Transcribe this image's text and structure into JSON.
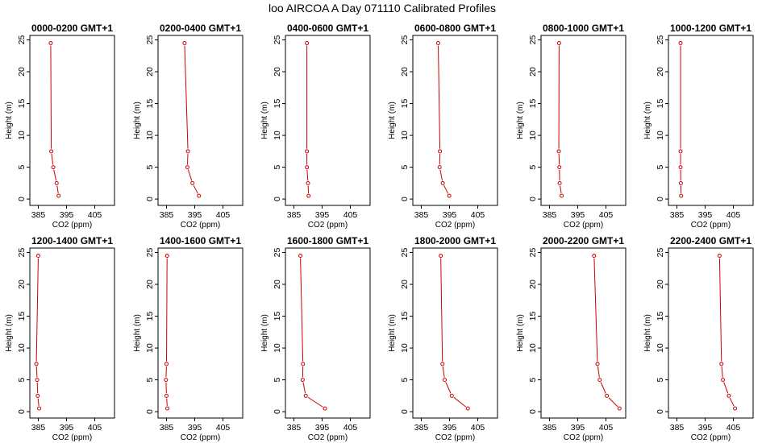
{
  "page_title": "loo AIRCOA A  Day 071110  Calibrated Profiles",
  "colors": {
    "series": "#cc0000",
    "axis": "#000000",
    "background": "#ffffff"
  },
  "chart_data": [
    {
      "type": "line",
      "title": "0000-0200 GMT+1",
      "xlabel": "CO2 (ppm)",
      "ylabel": "Height (m)",
      "xlim": [
        382,
        412
      ],
      "ylim": [
        -1,
        25.7
      ],
      "xticks": [
        385,
        395,
        405
      ],
      "yticks": [
        0,
        5,
        10,
        15,
        20,
        25
      ],
      "grid": false,
      "series": [
        {
          "x": [
            392.2,
            391.5,
            390.3,
            389.6,
            389.4
          ],
          "y": [
            0.5,
            2.5,
            5,
            7.5,
            24.5
          ]
        }
      ]
    },
    {
      "type": "line",
      "title": "0200-0400 GMT+1",
      "xlabel": "CO2 (ppm)",
      "ylabel": "Height (m)",
      "xlim": [
        382,
        412
      ],
      "ylim": [
        -1,
        25.7
      ],
      "xticks": [
        385,
        395,
        405
      ],
      "yticks": [
        0,
        5,
        10,
        15,
        20,
        25
      ],
      "grid": false,
      "series": [
        {
          "x": [
            396.5,
            394.2,
            392.4,
            392.6,
            391.4
          ],
          "y": [
            0.5,
            2.5,
            5,
            7.5,
            24.5
          ]
        }
      ]
    },
    {
      "type": "line",
      "title": "0400-0600 GMT+1",
      "xlabel": "CO2 (ppm)",
      "ylabel": "Height (m)",
      "xlim": [
        382,
        412
      ],
      "ylim": [
        -1,
        25.7
      ],
      "xticks": [
        385,
        395,
        405
      ],
      "yticks": [
        0,
        5,
        10,
        15,
        20,
        25
      ],
      "grid": false,
      "series": [
        {
          "x": [
            390.2,
            390.0,
            389.6,
            389.6,
            389.6
          ],
          "y": [
            0.5,
            2.5,
            5,
            7.5,
            24.5
          ]
        }
      ]
    },
    {
      "type": "line",
      "title": "0600-0800 GMT+1",
      "xlabel": "CO2 (ppm)",
      "ylabel": "Height (m)",
      "xlim": [
        382,
        412
      ],
      "ylim": [
        -1,
        25.7
      ],
      "xticks": [
        385,
        395,
        405
      ],
      "yticks": [
        0,
        5,
        10,
        15,
        20,
        25
      ],
      "grid": false,
      "series": [
        {
          "x": [
            394.9,
            392.6,
            391.5,
            391.6,
            391.0
          ],
          "y": [
            0.5,
            2.5,
            5,
            7.5,
            24.5
          ]
        }
      ]
    },
    {
      "type": "line",
      "title": "0800-1000 GMT+1",
      "xlabel": "CO2 (ppm)",
      "ylabel": "Height (m)",
      "xlim": [
        382,
        412
      ],
      "ylim": [
        -1,
        25.7
      ],
      "xticks": [
        385,
        395,
        405
      ],
      "yticks": [
        0,
        5,
        10,
        15,
        20,
        25
      ],
      "grid": false,
      "series": [
        {
          "x": [
            389.3,
            388.6,
            388.5,
            388.3,
            388.4
          ],
          "y": [
            0.5,
            2.5,
            5,
            7.5,
            24.5
          ]
        }
      ]
    },
    {
      "type": "line",
      "title": "1000-1200 GMT+1",
      "xlabel": "CO2 (ppm)",
      "ylabel": "Height (m)",
      "xlim": [
        382,
        412
      ],
      "ylim": [
        -1,
        25.7
      ],
      "xticks": [
        385,
        395,
        405
      ],
      "yticks": [
        0,
        5,
        10,
        15,
        20,
        25
      ],
      "grid": false,
      "series": [
        {
          "x": [
            386.5,
            386.4,
            386.3,
            386.3,
            386.3
          ],
          "y": [
            0.5,
            2.5,
            5,
            7.5,
            24.5
          ]
        }
      ]
    },
    {
      "type": "line",
      "title": "1200-1400 GMT+1",
      "xlabel": "CO2 (ppm)",
      "ylabel": "Height (m)",
      "xlim": [
        382,
        412
      ],
      "ylim": [
        -1,
        25.7
      ],
      "xticks": [
        385,
        395,
        405
      ],
      "yticks": [
        0,
        5,
        10,
        15,
        20,
        25
      ],
      "grid": false,
      "series": [
        {
          "x": [
            385.3,
            384.8,
            384.6,
            384.3,
            385.0
          ],
          "y": [
            0.5,
            2.5,
            5,
            7.5,
            24.5
          ]
        }
      ]
    },
    {
      "type": "line",
      "title": "1400-1600 GMT+1",
      "xlabel": "CO2 (ppm)",
      "ylabel": "Height (m)",
      "xlim": [
        382,
        412
      ],
      "ylim": [
        -1,
        25.7
      ],
      "xticks": [
        385,
        395,
        405
      ],
      "yticks": [
        0,
        5,
        10,
        15,
        20,
        25
      ],
      "grid": false,
      "series": [
        {
          "x": [
            385.3,
            385.0,
            384.8,
            385.0,
            385.2
          ],
          "y": [
            0.5,
            2.5,
            5,
            7.5,
            24.5
          ]
        }
      ]
    },
    {
      "type": "line",
      "title": "1600-1800 GMT+1",
      "xlabel": "CO2 (ppm)",
      "ylabel": "Height (m)",
      "xlim": [
        382,
        412
      ],
      "ylim": [
        -1,
        25.7
      ],
      "xticks": [
        385,
        395,
        405
      ],
      "yticks": [
        0,
        5,
        10,
        15,
        20,
        25
      ],
      "grid": false,
      "series": [
        {
          "x": [
            396.0,
            389.2,
            388.1,
            388.2,
            387.3
          ],
          "y": [
            0.5,
            2.5,
            5,
            7.5,
            24.5
          ]
        }
      ]
    },
    {
      "type": "line",
      "title": "1800-2000 GMT+1",
      "xlabel": "CO2 (ppm)",
      "ylabel": "Height (m)",
      "xlim": [
        382,
        412
      ],
      "ylim": [
        -1,
        25.7
      ],
      "xticks": [
        385,
        395,
        405
      ],
      "yticks": [
        0,
        5,
        10,
        15,
        20,
        25
      ],
      "grid": false,
      "series": [
        {
          "x": [
            401.5,
            395.8,
            393.3,
            392.5,
            391.9
          ],
          "y": [
            0.5,
            2.5,
            5,
            7.5,
            24.5
          ]
        }
      ]
    },
    {
      "type": "line",
      "title": "2000-2200 GMT+1",
      "xlabel": "CO2 (ppm)",
      "ylabel": "Height (m)",
      "xlim": [
        382,
        412
      ],
      "ylim": [
        -1,
        25.7
      ],
      "xticks": [
        385,
        395,
        405
      ],
      "yticks": [
        0,
        5,
        10,
        15,
        20,
        25
      ],
      "grid": false,
      "series": [
        {
          "x": [
            409.8,
            405.3,
            402.8,
            402.0,
            400.8
          ],
          "y": [
            0.5,
            2.5,
            5,
            7.5,
            24.5
          ]
        }
      ]
    },
    {
      "type": "line",
      "title": "2200-2400 GMT+1",
      "xlabel": "CO2 (ppm)",
      "ylabel": "Height (m)",
      "xlim": [
        382,
        412
      ],
      "ylim": [
        -1,
        25.7
      ],
      "xticks": [
        385,
        395,
        405
      ],
      "yticks": [
        0,
        5,
        10,
        15,
        20,
        25
      ],
      "grid": false,
      "series": [
        {
          "x": [
            405.6,
            403.4,
            401.3,
            400.8,
            400.1
          ],
          "y": [
            0.5,
            2.5,
            5,
            7.5,
            24.5
          ]
        }
      ]
    }
  ]
}
